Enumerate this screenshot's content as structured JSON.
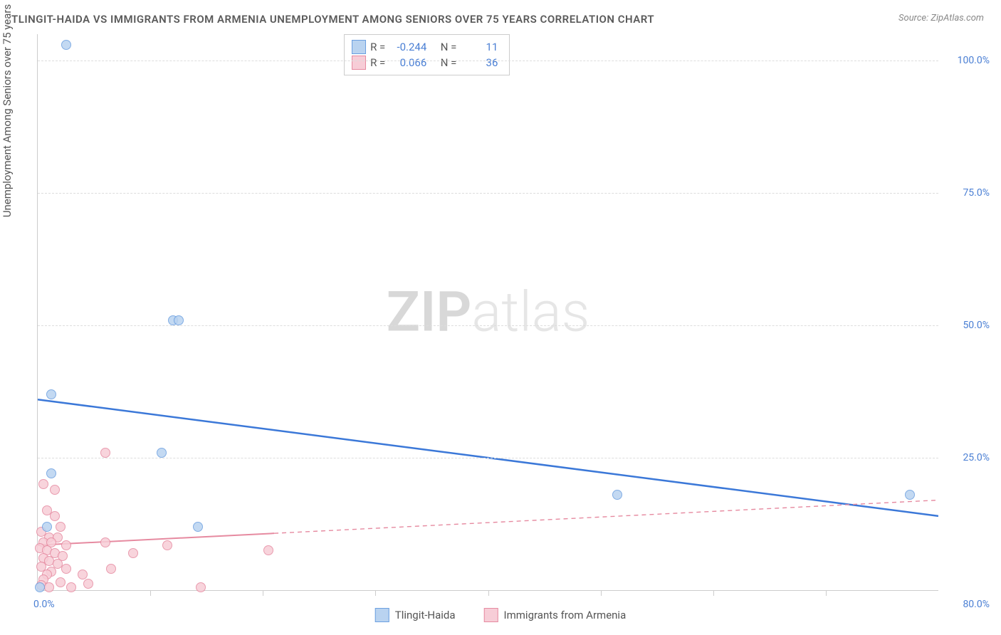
{
  "title": "TLINGIT-HAIDA VS IMMIGRANTS FROM ARMENIA UNEMPLOYMENT AMONG SENIORS OVER 75 YEARS CORRELATION CHART",
  "source": "Source: ZipAtlas.com",
  "ylabel": "Unemployment Among Seniors over 75 years",
  "watermark_bold": "ZIP",
  "watermark_light": "atlas",
  "chart": {
    "type": "scatter",
    "xlim": [
      0,
      80
    ],
    "ylim": [
      0,
      105
    ],
    "xtick_left": "0.0%",
    "xtick_right": "80.0%",
    "yticks": [
      {
        "v": 25,
        "label": "25.0%"
      },
      {
        "v": 50,
        "label": "50.0%"
      },
      {
        "v": 75,
        "label": "75.0%"
      },
      {
        "v": 100,
        "label": "100.0%"
      }
    ],
    "xtick_minor": [
      10,
      20,
      30,
      40,
      50,
      60,
      70
    ],
    "background_color": "#ffffff",
    "grid_color": "#dddddd",
    "axis_color": "#cccccc"
  },
  "series": [
    {
      "name": "Tlingit-Haida",
      "color_fill": "#b9d3f0",
      "color_stroke": "#6b9fe0",
      "marker_radius": 7,
      "R": "-0.244",
      "N": "11",
      "trend": {
        "x1": 0,
        "y1": 36,
        "x2": 80,
        "y2": 14,
        "stroke": "#3b78d8",
        "width": 2.5,
        "dash": "",
        "solid_until": 80
      },
      "points": [
        {
          "x": 2.5,
          "y": 103
        },
        {
          "x": 1.2,
          "y": 37
        },
        {
          "x": 12.0,
          "y": 51
        },
        {
          "x": 12.5,
          "y": 51
        },
        {
          "x": 11.0,
          "y": 26
        },
        {
          "x": 1.2,
          "y": 22
        },
        {
          "x": 0.8,
          "y": 12
        },
        {
          "x": 14.2,
          "y": 12
        },
        {
          "x": 0.2,
          "y": 0.5
        },
        {
          "x": 51.5,
          "y": 18
        },
        {
          "x": 77.5,
          "y": 18
        }
      ]
    },
    {
      "name": "Immigrants from Armenia",
      "color_fill": "#f7cdd7",
      "color_stroke": "#e68aa0",
      "marker_radius": 7,
      "R": "0.066",
      "N": "36",
      "trend": {
        "x1": 0,
        "y1": 8.5,
        "x2": 80,
        "y2": 17,
        "stroke": "#e68aa0",
        "width": 2,
        "dash": "6,5",
        "solid_until": 21
      },
      "points": [
        {
          "x": 0.5,
          "y": 20
        },
        {
          "x": 1.5,
          "y": 19
        },
        {
          "x": 0.8,
          "y": 15
        },
        {
          "x": 1.5,
          "y": 14
        },
        {
          "x": 2.0,
          "y": 12
        },
        {
          "x": 0.3,
          "y": 11
        },
        {
          "x": 1.0,
          "y": 10
        },
        {
          "x": 1.8,
          "y": 10
        },
        {
          "x": 0.5,
          "y": 9
        },
        {
          "x": 1.2,
          "y": 9
        },
        {
          "x": 2.5,
          "y": 8.5
        },
        {
          "x": 0.2,
          "y": 8
        },
        {
          "x": 0.8,
          "y": 7.5
        },
        {
          "x": 1.5,
          "y": 7
        },
        {
          "x": 2.2,
          "y": 6.5
        },
        {
          "x": 0.5,
          "y": 6
        },
        {
          "x": 1.0,
          "y": 5.5
        },
        {
          "x": 1.8,
          "y": 5
        },
        {
          "x": 0.3,
          "y": 4.5
        },
        {
          "x": 2.5,
          "y": 4
        },
        {
          "x": 1.2,
          "y": 3.5
        },
        {
          "x": 0.8,
          "y": 3
        },
        {
          "x": 4.0,
          "y": 3
        },
        {
          "x": 0.5,
          "y": 2
        },
        {
          "x": 2.0,
          "y": 1.5
        },
        {
          "x": 4.5,
          "y": 1.2
        },
        {
          "x": 3.0,
          "y": 0.5
        },
        {
          "x": 6.0,
          "y": 26
        },
        {
          "x": 6.0,
          "y": 9
        },
        {
          "x": 6.5,
          "y": 4
        },
        {
          "x": 8.5,
          "y": 7
        },
        {
          "x": 11.5,
          "y": 8.5
        },
        {
          "x": 14.5,
          "y": 0.5
        },
        {
          "x": 20.5,
          "y": 7.5
        },
        {
          "x": 0.3,
          "y": 1
        },
        {
          "x": 1.0,
          "y": 0.5
        }
      ]
    }
  ],
  "legend_stats": {
    "r_label": "R =",
    "n_label": "N ="
  }
}
